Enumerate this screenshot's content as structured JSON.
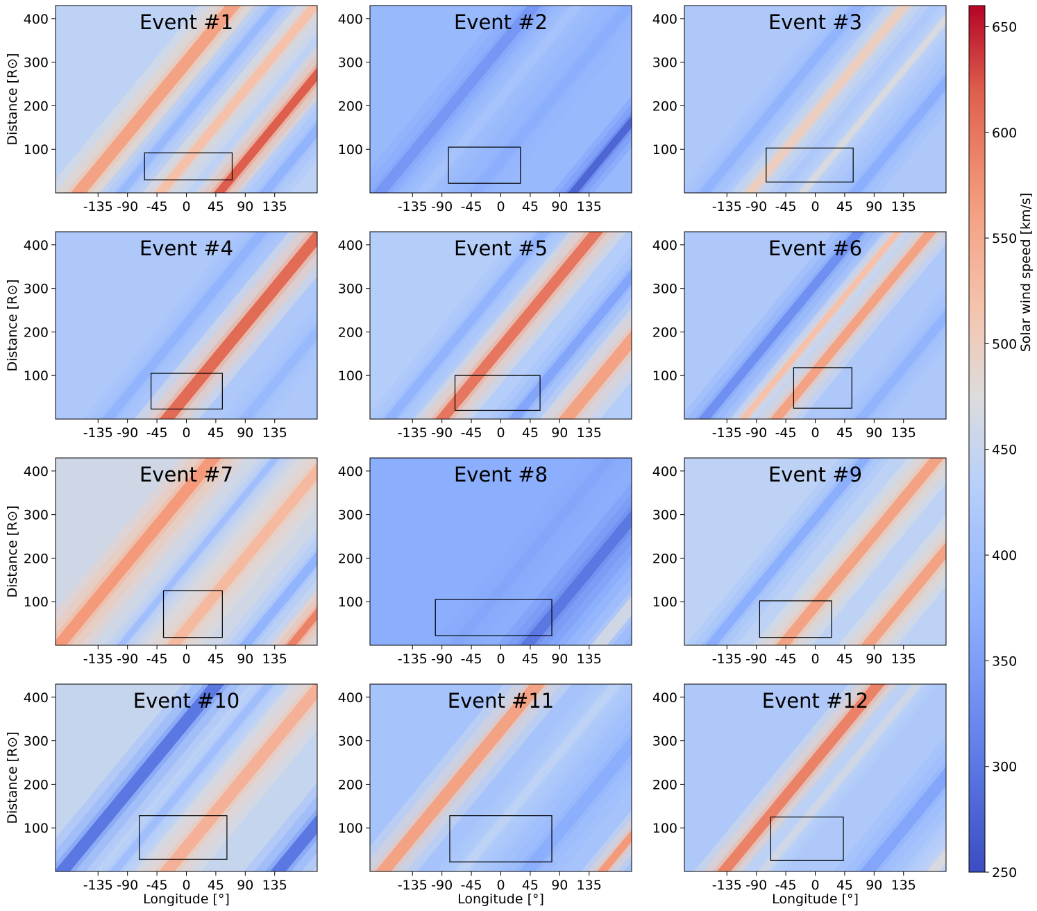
{
  "figure": {
    "x_axis_label": "Longitude [°]",
    "y_axis_label": "Distance [R⊙]",
    "colorbar_label": "Solar wind speed [km/s]"
  },
  "chart_data": {
    "type": "heatmap",
    "description_units": "color = solar wind speed in km/s",
    "xlim": [
      -200,
      200
    ],
    "ylim": [
      0,
      430
    ],
    "xticks": [
      -135,
      -90,
      -45,
      0,
      45,
      90,
      135
    ],
    "xtick_labels": [
      "-135",
      "-90",
      "-45",
      "0",
      "45",
      "90",
      "135"
    ],
    "yticks": [
      100,
      200,
      300,
      400
    ],
    "ytick_labels": [
      "100",
      "200",
      "300",
      "400"
    ],
    "colorbar": {
      "colormap": "coolwarm",
      "vmin": 250,
      "vmax": 660,
      "ticks": [
        250,
        300,
        350,
        400,
        450,
        500,
        550,
        600,
        650
      ],
      "tick_labels": [
        "250",
        "300",
        "350",
        "400",
        "450",
        "500",
        "550",
        "600",
        "650"
      ],
      "label": "Solar wind speed [km/s]"
    },
    "panels": [
      {
        "title": "Event #1",
        "box": {
          "lon_min": -64,
          "lon_max": 70,
          "r_min": 30,
          "r_max": 92
        },
        "bands": [
          {
            "lon_at_0": -165,
            "speed": 560,
            "width": 40
          },
          {
            "lon_at_0": -40,
            "speed": 520,
            "width": 30
          },
          {
            "lon_at_0": 50,
            "speed": 620,
            "width": 28
          },
          {
            "lon_at_0": -100,
            "speed": 390,
            "width": 25
          },
          {
            "lon_at_0": 120,
            "speed": 380,
            "width": 30
          }
        ],
        "base": 440
      },
      {
        "title": "Event #2",
        "box": {
          "lon_min": -80,
          "lon_max": 30,
          "r_min": 22,
          "r_max": 105
        },
        "bands": [
          {
            "lon_at_0": -185,
            "speed": 340,
            "width": 35
          },
          {
            "lon_at_0": -40,
            "speed": 370,
            "width": 30
          },
          {
            "lon_at_0": 110,
            "speed": 280,
            "width": 25
          },
          {
            "lon_at_0": -120,
            "speed": 410,
            "width": 30
          }
        ],
        "base": 390
      },
      {
        "title": "Event #3",
        "box": {
          "lon_min": -75,
          "lon_max": 58,
          "r_min": 25,
          "r_max": 103
        },
        "bands": [
          {
            "lon_at_0": -100,
            "speed": 500,
            "width": 30
          },
          {
            "lon_at_0": -20,
            "speed": 470,
            "width": 20
          },
          {
            "lon_at_0": 60,
            "speed": 370,
            "width": 30
          },
          {
            "lon_at_0": -170,
            "speed": 380,
            "width": 30
          }
        ],
        "base": 420
      },
      {
        "title": "Event #4",
        "box": {
          "lon_min": -54,
          "lon_max": 55,
          "r_min": 23,
          "r_max": 105
        },
        "bands": [
          {
            "lon_at_0": -30,
            "speed": 610,
            "width": 38
          },
          {
            "lon_at_0": -120,
            "speed": 380,
            "width": 30
          },
          {
            "lon_at_0": 90,
            "speed": 390,
            "width": 30
          }
        ],
        "base": 420
      },
      {
        "title": "Event #5",
        "box": {
          "lon_min": -70,
          "lon_max": 60,
          "r_min": 20,
          "r_max": 100
        },
        "bands": [
          {
            "lon_at_0": -90,
            "speed": 600,
            "width": 35
          },
          {
            "lon_at_0": 100,
            "speed": 560,
            "width": 40
          },
          {
            "lon_at_0": -170,
            "speed": 380,
            "width": 30
          },
          {
            "lon_at_0": 20,
            "speed": 360,
            "width": 30
          }
        ],
        "base": 430
      },
      {
        "title": "Event #6",
        "box": {
          "lon_min": -33,
          "lon_max": 56,
          "r_min": 25,
          "r_max": 118
        },
        "bands": [
          {
            "lon_at_0": -60,
            "speed": 560,
            "width": 30
          },
          {
            "lon_at_0": -110,
            "speed": 520,
            "width": 20
          },
          {
            "lon_at_0": -170,
            "speed": 330,
            "width": 30
          },
          {
            "lon_at_0": 70,
            "speed": 380,
            "width": 30
          }
        ],
        "base": 420
      },
      {
        "title": "Event #7",
        "box": {
          "lon_min": -35,
          "lon_max": 55,
          "r_min": 18,
          "r_max": 125
        },
        "bands": [
          {
            "lon_at_0": -195,
            "speed": 570,
            "width": 38
          },
          {
            "lon_at_0": -20,
            "speed": 530,
            "width": 35
          },
          {
            "lon_at_0": 160,
            "speed": 590,
            "width": 25
          },
          {
            "lon_at_0": 90,
            "speed": 380,
            "width": 30
          },
          {
            "lon_at_0": -100,
            "speed": 400,
            "width": 20
          }
        ],
        "base": 460
      },
      {
        "title": "Event #8",
        "box": {
          "lon_min": -100,
          "lon_max": 78,
          "r_min": 22,
          "r_max": 105
        },
        "bands": [
          {
            "lon_at_0": 40,
            "speed": 300,
            "width": 35
          },
          {
            "lon_at_0": -70,
            "speed": 360,
            "width": 30
          },
          {
            "lon_at_0": 150,
            "speed": 460,
            "width": 40
          }
        ],
        "base": 370
      },
      {
        "title": "Event #9",
        "box": {
          "lon_min": -85,
          "lon_max": 25,
          "r_min": 18,
          "r_max": 102
        },
        "bands": [
          {
            "lon_at_0": -50,
            "speed": 560,
            "width": 35
          },
          {
            "lon_at_0": 80,
            "speed": 560,
            "width": 35
          },
          {
            "lon_at_0": -160,
            "speed": 370,
            "width": 30
          }
        ],
        "base": 440
      },
      {
        "title": "Event #10",
        "box": {
          "lon_min": -72,
          "lon_max": 62,
          "r_min": 28,
          "r_max": 128
        },
        "bands": [
          {
            "lon_at_0": -190,
            "speed": 300,
            "width": 40
          },
          {
            "lon_at_0": -30,
            "speed": 540,
            "width": 40
          },
          {
            "lon_at_0": 140,
            "speed": 300,
            "width": 40
          },
          {
            "lon_at_0": -110,
            "speed": 400,
            "width": 25
          }
        ],
        "base": 450
      },
      {
        "title": "Event #11",
        "box": {
          "lon_min": -78,
          "lon_max": 78,
          "r_min": 22,
          "r_max": 128
        },
        "bands": [
          {
            "lon_at_0": -180,
            "speed": 560,
            "width": 40
          },
          {
            "lon_at_0": -60,
            "speed": 440,
            "width": 30
          },
          {
            "lon_at_0": 155,
            "speed": 570,
            "width": 25
          },
          {
            "lon_at_0": 40,
            "speed": 370,
            "width": 40
          }
        ],
        "base": 410
      },
      {
        "title": "Event #12",
        "box": {
          "lon_min": -68,
          "lon_max": 43,
          "r_min": 25,
          "r_max": 125
        },
        "bands": [
          {
            "lon_at_0": -140,
            "speed": 590,
            "width": 35
          },
          {
            "lon_at_0": -80,
            "speed": 460,
            "width": 25
          },
          {
            "lon_at_0": 80,
            "speed": 360,
            "width": 40
          },
          {
            "lon_at_0": 180,
            "speed": 470,
            "width": 30
          }
        ],
        "base": 420
      }
    ]
  }
}
